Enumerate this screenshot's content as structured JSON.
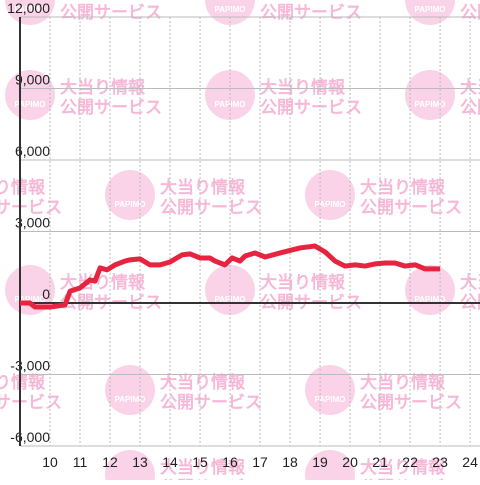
{
  "watermark": {
    "line1": "大当り情報",
    "line2": "公開サービス",
    "logo": "PAPIMO"
  },
  "chart_data": {
    "type": "line",
    "x": [
      9.0,
      9.33,
      9.5,
      10.0,
      10.5,
      10.67,
      11.0,
      11.33,
      11.5,
      11.67,
      11.9,
      12.17,
      12.5,
      12.67,
      13.0,
      13.33,
      13.67,
      14.0,
      14.4,
      14.67,
      15.0,
      15.33,
      15.5,
      15.83,
      16.07,
      16.33,
      16.5,
      16.83,
      17.17,
      17.67,
      18.33,
      18.83,
      19.17,
      19.5,
      19.83,
      20.17,
      20.5,
      20.83,
      21.17,
      21.5,
      21.83,
      22.17,
      22.5,
      23.0
    ],
    "series": [
      {
        "color": "#e8233f",
        "values": [
          0,
          0,
          -170,
          -170,
          -80,
          500,
          630,
          970,
          920,
          1470,
          1390,
          1600,
          1760,
          1810,
          1850,
          1600,
          1600,
          1720,
          2020,
          2060,
          1890,
          1890,
          1760,
          1600,
          1890,
          1760,
          1970,
          2100,
          1930,
          2100,
          2310,
          2390,
          2140,
          1760,
          1550,
          1600,
          1550,
          1640,
          1680,
          1680,
          1550,
          1600,
          1430,
          1430
        ]
      }
    ],
    "xlim": [
      9,
      24.33
    ],
    "xticks": [
      10,
      11,
      12,
      13,
      14,
      15,
      16,
      17,
      18,
      19,
      20,
      21,
      22,
      23,
      24
    ],
    "ylim": [
      -6000,
      12000
    ],
    "yticks": [
      {
        "value": -6000,
        "label": "-6,000"
      },
      {
        "value": -3000,
        "label": "-3,000"
      },
      0,
      {
        "value": 3000,
        "label": "3,000"
      },
      {
        "value": 6000,
        "label": "6,000"
      },
      {
        "value": 9000,
        "label": "9,000"
      },
      {
        "value": 12000,
        "label": "12,000"
      }
    ],
    "grid": true
  }
}
